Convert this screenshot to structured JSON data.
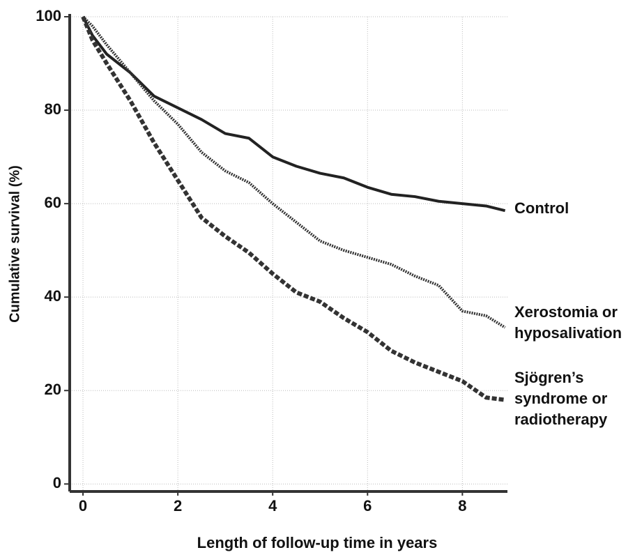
{
  "chart_data": {
    "type": "line",
    "xlabel": "Length of follow-up time in years",
    "ylabel": "Cumulative survival (%)",
    "x": [
      0,
      0.2,
      0.5,
      1,
      1.5,
      2,
      2.5,
      3,
      3.5,
      4,
      4.5,
      5,
      5.5,
      6,
      6.5,
      7,
      7.5,
      8,
      8.5,
      8.9
    ],
    "series": [
      {
        "name": "Control",
        "color": "#222222",
        "style": "solid",
        "values": [
          100,
          96,
          92,
          88,
          83,
          80.5,
          78,
          75,
          74,
          70,
          68,
          66.5,
          65.5,
          63.5,
          62,
          61.5,
          60.5,
          60,
          59.5,
          58.5
        ]
      },
      {
        "name": "Xerostomia or hyposalivation",
        "color": "#333333",
        "style": "dotted",
        "values": [
          100,
          98,
          94,
          88,
          82,
          77,
          71,
          67,
          64.5,
          60,
          56,
          52,
          50,
          48.5,
          47,
          44.5,
          42.5,
          37,
          36,
          33.5
        ]
      },
      {
        "name": "Sjögren’s syndrome or radiotherapy",
        "color": "#333333",
        "style": "dashed",
        "values": [
          100,
          95,
          90,
          82,
          73,
          65,
          57,
          53,
          49.5,
          45,
          41,
          39,
          35.5,
          32.5,
          28.5,
          26,
          24,
          22,
          18.5,
          18
        ]
      }
    ],
    "xlim": [
      -0.28,
      8.95
    ],
    "ylim": [
      -1.6,
      100
    ],
    "xticks": [
      0,
      2,
      4,
      6,
      8
    ],
    "yticks": [
      0,
      20,
      40,
      60,
      80,
      100
    ],
    "grid": true
  }
}
